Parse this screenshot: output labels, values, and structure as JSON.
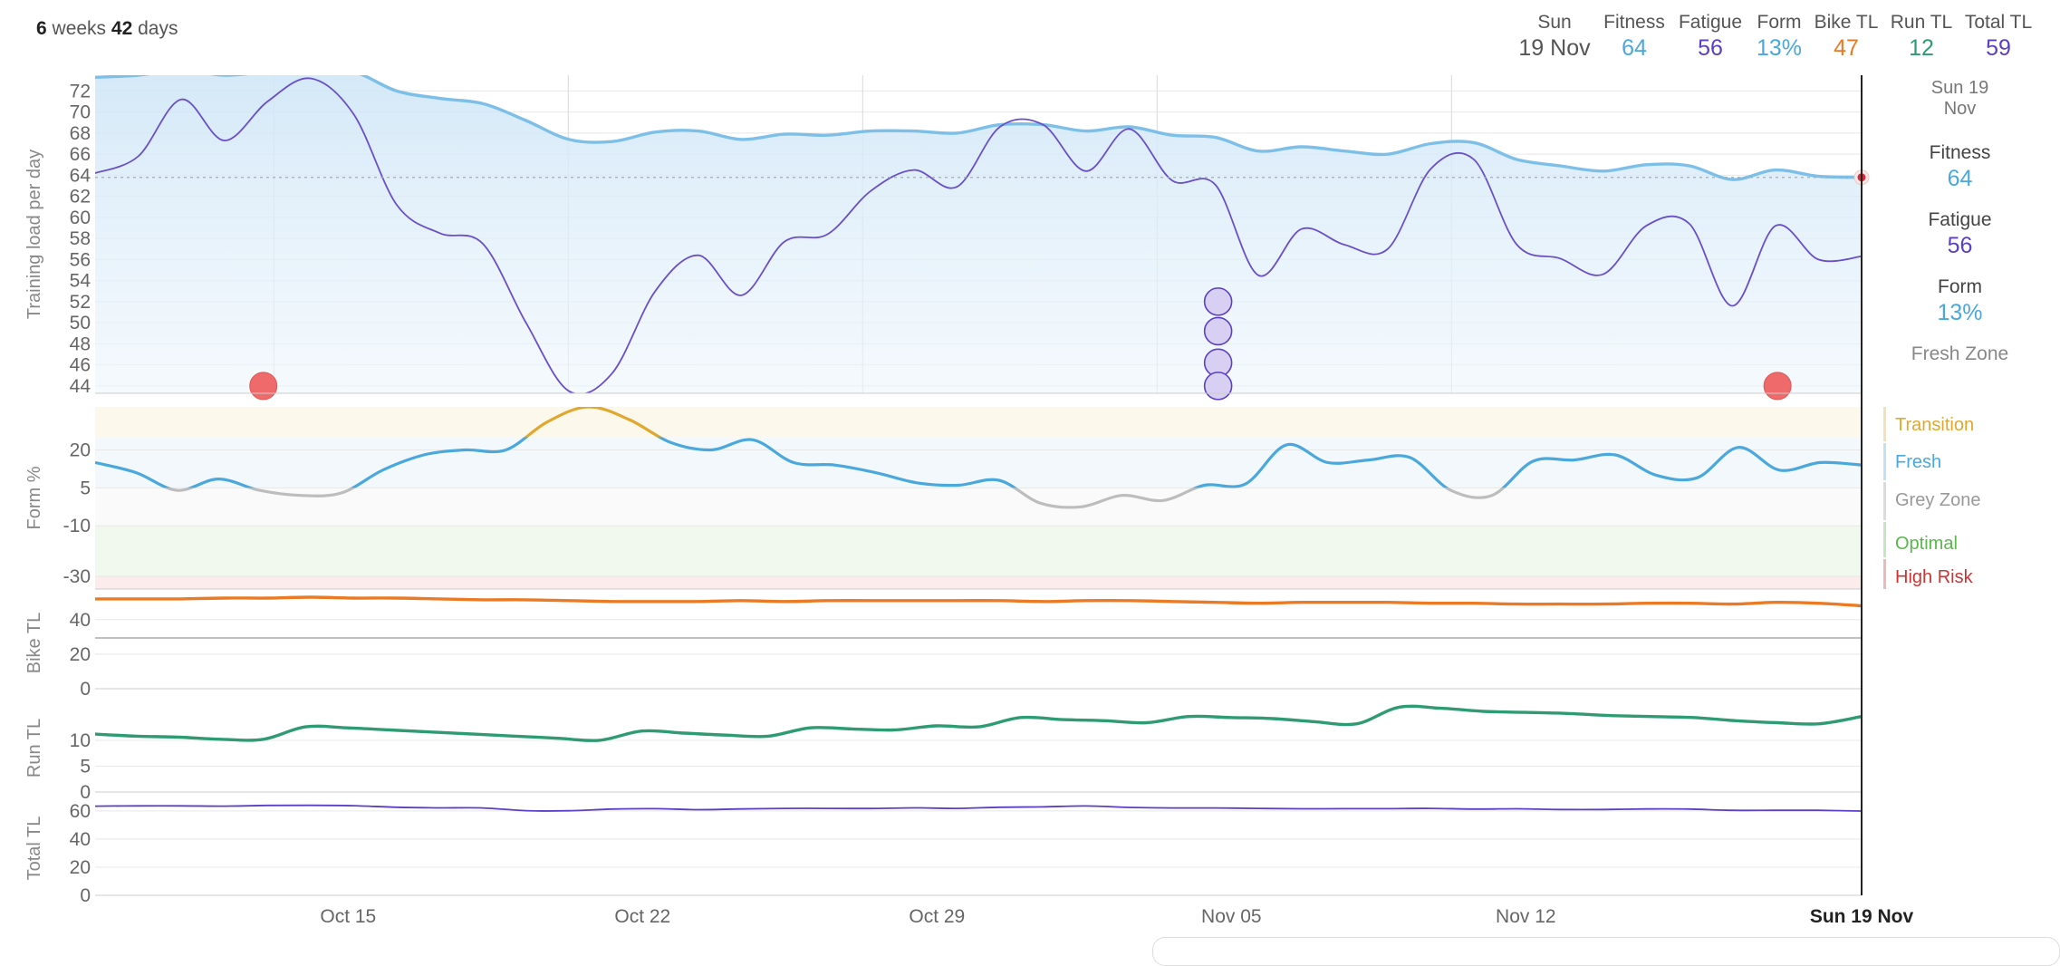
{
  "header": {
    "range_weeks": "6",
    "range_weeks_unit": "weeks",
    "range_days": "42",
    "range_days_unit": "days",
    "stats": [
      {
        "label": "Sun",
        "value": "19 Nov",
        "color": "#555555"
      },
      {
        "label": "Fitness",
        "value": "64",
        "color": "#4aa8dc"
      },
      {
        "label": "Fatigue",
        "value": "56",
        "color": "#5b3fc4"
      },
      {
        "label": "Form",
        "value": "13%",
        "color": "#4aa8dc"
      },
      {
        "label": "Bike TL",
        "value": "47",
        "color": "#ea7a24"
      },
      {
        "label": "Run TL",
        "value": "12",
        "color": "#2e9b73"
      },
      {
        "label": "Total TL",
        "value": "59",
        "color": "#5b3fc4"
      }
    ]
  },
  "sidebar": {
    "date_line1": "Sun 19",
    "date_line2": "Nov",
    "fitness_label": "Fitness",
    "fitness_value": "64",
    "fatigue_label": "Fatigue",
    "fatigue_value": "56",
    "form_label": "Form",
    "form_value": "13%",
    "zone": "Fresh Zone"
  },
  "zones": [
    {
      "label": "Transition",
      "color": "#e0a82e"
    },
    {
      "label": "Fresh",
      "color": "#4aa8dc"
    },
    {
      "label": "Grey Zone",
      "color": "#999999"
    },
    {
      "label": "Optimal",
      "color": "#58b84a"
    },
    {
      "label": "High Risk",
      "color": "#cc3333"
    }
  ],
  "chart_data": [
    {
      "type": "line",
      "panel": "training-load",
      "ylabel": "Training load per day",
      "ylim": [
        43.3,
        73.5
      ],
      "yticks": [
        44,
        46,
        48,
        50,
        52,
        54,
        56,
        58,
        60,
        62,
        64,
        66,
        68,
        70,
        72
      ],
      "x_days": [
        0,
        1,
        2,
        3,
        4,
        5,
        6,
        7,
        8,
        9,
        10,
        11,
        12,
        13,
        14,
        15,
        16,
        17,
        18,
        19,
        20,
        21,
        22,
        23,
        24,
        25,
        26,
        27,
        28,
        29,
        30,
        31,
        32,
        33,
        34,
        35,
        36,
        37,
        38,
        39,
        40,
        41,
        42
      ],
      "series": [
        {
          "name": "Fitness",
          "color": "#7cbfe8",
          "values": [
            73.3,
            73.5,
            74,
            73.5,
            73.8,
            73.8,
            73.8,
            72,
            71.3,
            70.8,
            69.2,
            67.4,
            67.2,
            68.1,
            68.2,
            67.4,
            67.9,
            67.8,
            68.2,
            68.2,
            68,
            68.8,
            68.8,
            68.2,
            68.6,
            67.8,
            67.6,
            66.3,
            66.7,
            66.3,
            66,
            67,
            67.1,
            65.5,
            64.9,
            64.4,
            65,
            64.9,
            63.6,
            64.5,
            63.9,
            63.8
          ]
        },
        {
          "name": "Fatigue",
          "color": "#6a4fc9",
          "values": [
            64.2,
            65.8,
            71.2,
            67.3,
            71,
            73.2,
            69.8,
            61.2,
            58.5,
            57.5,
            50,
            43.5,
            45.2,
            53,
            56.4,
            52.6,
            57.7,
            58.4,
            62.5,
            64.5,
            62.9,
            68.6,
            68.8,
            64.4,
            68.4,
            63.5,
            63.1,
            54.5,
            58.9,
            57.4,
            57,
            64.6,
            65.5,
            57.4,
            56.1,
            54.6,
            59.2,
            59.4,
            51.6,
            59.2,
            56,
            56.3
          ]
        }
      ],
      "markers": [
        {
          "type": "red",
          "day": 4,
          "value": 44
        },
        {
          "type": "red",
          "day": 40,
          "value": 44
        },
        {
          "type": "purple",
          "day": 26.7,
          "value": 52
        },
        {
          "type": "purple",
          "day": 26.7,
          "value": 49.2
        },
        {
          "type": "purple",
          "day": 26.7,
          "value": 46.2
        },
        {
          "type": "purple",
          "day": 26.7,
          "value": 44
        }
      ],
      "reference_line": 63.8
    },
    {
      "type": "line",
      "panel": "form",
      "ylabel": "Form %",
      "ylim": [
        -35,
        37
      ],
      "yticks": [
        20,
        5,
        -10,
        -30
      ],
      "series": [
        {
          "name": "Form",
          "color": "#4aa8dc",
          "values": [
            15,
            11,
            4,
            8.5,
            4,
            2,
            3,
            12,
            18,
            20,
            20,
            31,
            37,
            32,
            23,
            20,
            24,
            15,
            14,
            11,
            7,
            6,
            8,
            -1,
            -2.5,
            2,
            0,
            6,
            6.5,
            22,
            15,
            16,
            17,
            4,
            2,
            15.5,
            16,
            18,
            10,
            9,
            21,
            12,
            15,
            14
          ]
        }
      ],
      "zone_bounds": [
        {
          "from": 25,
          "to": 37
        },
        {
          "from": 5,
          "to": 25
        },
        {
          "from": -10,
          "to": 5
        },
        {
          "from": -30,
          "to": -10
        },
        {
          "from": -35,
          "to": -30
        }
      ]
    },
    {
      "type": "line",
      "panel": "bike",
      "ylabel": "Bike TL",
      "ylim": [
        0,
        53
      ],
      "yticks": [
        40,
        20,
        0
      ],
      "series": [
        {
          "name": "Bike TL",
          "color": "#ea7a24",
          "values": [
            52,
            52,
            52,
            52.5,
            52.5,
            53,
            52.5,
            52.5,
            52,
            51.5,
            51.5,
            51,
            50.5,
            50.5,
            50.5,
            51,
            50.5,
            51,
            51,
            51,
            51,
            51,
            50.5,
            51,
            51,
            50.5,
            50,
            49.5,
            50,
            50,
            50,
            49.5,
            49.5,
            49,
            49,
            49,
            49.5,
            49.5,
            49,
            50,
            49.5,
            48
          ]
        }
      ]
    },
    {
      "type": "line",
      "panel": "run",
      "ylabel": "Run TL",
      "ylim": [
        0,
        17
      ],
      "yticks": [
        10,
        5,
        0
      ],
      "series": [
        {
          "name": "Run TL",
          "color": "#2e9b73",
          "values": [
            11.2,
            10.8,
            10.6,
            10.2,
            10.2,
            12.6,
            12.4,
            12.0,
            11.6,
            11.2,
            10.8,
            10.4,
            10.0,
            11.8,
            11.4,
            11.0,
            10.8,
            12.4,
            12.2,
            12.0,
            12.8,
            12.6,
            14.4,
            14.0,
            13.8,
            13.4,
            14.6,
            14.4,
            14.2,
            13.6,
            13.2,
            16.4,
            16.2,
            15.6,
            15.4,
            15.2,
            14.8,
            14.6,
            14.4,
            13.8,
            13.4,
            13.2,
            14.6
          ]
        }
      ]
    },
    {
      "type": "line",
      "panel": "total",
      "ylabel": "Total TL",
      "ylim": [
        0,
        67
      ],
      "yticks": [
        60,
        40,
        20,
        0
      ],
      "series": [
        {
          "name": "Total TL",
          "color": "#5b3fc4",
          "values": [
            63.4,
            63.6,
            63.6,
            63.4,
            63.9,
            64,
            63.7,
            62.6,
            62.2,
            62.1,
            60.2,
            60.1,
            61.3,
            61.6,
            60.9,
            61.4,
            61.8,
            61.8,
            61.7,
            62.2,
            61.8,
            62.6,
            62.9,
            63.5,
            62.5,
            62.1,
            62.1,
            61.8,
            61.5,
            61.6,
            61.6,
            61.8,
            61.3,
            61.5,
            61,
            61,
            61.4,
            61.3,
            60.4,
            60.4,
            60.4,
            59.9
          ]
        }
      ]
    }
  ],
  "x_axis": {
    "start_day_labels": [
      "Oct 15",
      "Oct 22",
      "Oct 29",
      "Nov 05",
      "Nov 12"
    ],
    "end_label": "Sun 19 Nov"
  }
}
